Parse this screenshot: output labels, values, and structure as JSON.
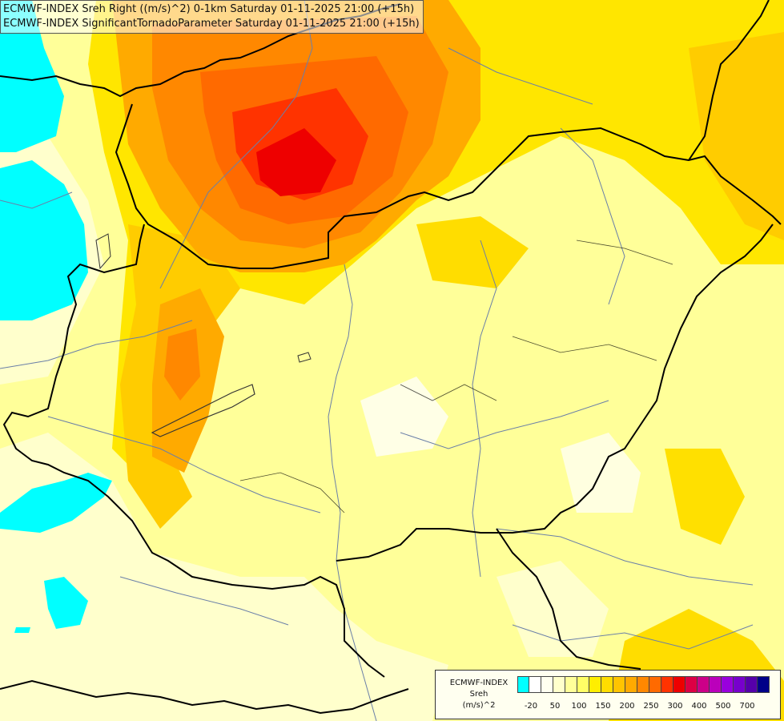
{
  "header": {
    "line1": "ECMWF-INDEX Sreh Right ((m/s)^2) 0-1km Saturday 01-11-2025 21:00 (+15h)",
    "line2": "ECMWF-INDEX SignificantTornadoParameter Saturday 01-11-2025 21:00 (+15h)"
  },
  "legend": {
    "title_lines": [
      "ECMWF-INDEX",
      "Sreh",
      "(m/s)^2"
    ],
    "colors": [
      "#00ffff",
      "#ffffff",
      "#fffff0",
      "#ffffcc",
      "#ffff99",
      "#ffff66",
      "#ffee00",
      "#ffdd00",
      "#ffc400",
      "#ffaa00",
      "#ff8800",
      "#ff6a00",
      "#ff3300",
      "#ee0000",
      "#dd0044",
      "#cc0088",
      "#bb00bb",
      "#9900dd",
      "#7700cc",
      "#5500aa",
      "#000088"
    ],
    "tick_labels": [
      "-20",
      "50",
      "100",
      "150",
      "200",
      "250",
      "300",
      "400",
      "500",
      "700"
    ]
  }
}
